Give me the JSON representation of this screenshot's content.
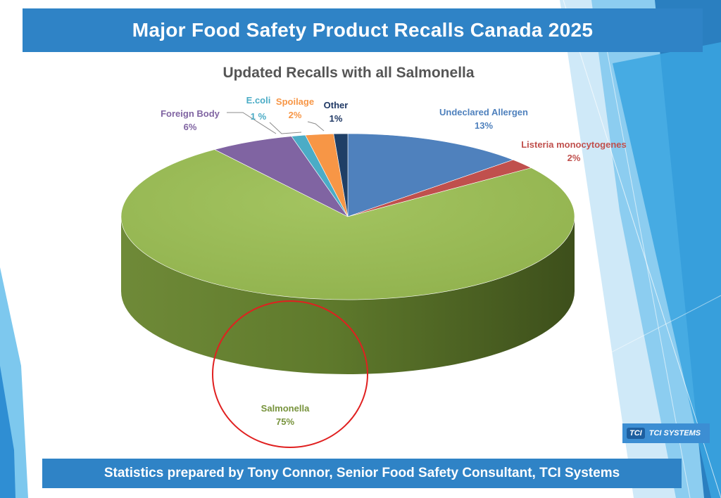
{
  "header": {
    "title": "Major Food Safety Product Recalls Canada 2025"
  },
  "footer": {
    "text": "Statistics prepared by Tony Connor, Senior Food Safety Consultant, TCI Systems"
  },
  "logo": {
    "mark": "TCI",
    "text": "TCI SYSTEMS"
  },
  "chart_data": {
    "type": "pie",
    "title": "Updated Recalls with all Salmonella",
    "slices": [
      {
        "name": "Undeclared Allergen",
        "value": 13,
        "label": "13%",
        "color": "#4f81bd",
        "label_color": "#4f81bd"
      },
      {
        "name": "Listeria monocytogenes",
        "value": 2,
        "label": "2%",
        "color": "#c0504d",
        "label_color": "#c0504d"
      },
      {
        "name": "Salmonella",
        "value": 75,
        "label": "75%",
        "color": "#9bbb59",
        "label_color": "#77933c"
      },
      {
        "name": "Foreign Body",
        "value": 6,
        "label": "6%",
        "color": "#8064a2",
        "label_color": "#8064a2"
      },
      {
        "name": "E.coli",
        "value": 1,
        "label": "1 %",
        "color": "#4bacc6",
        "label_color": "#4bacc6"
      },
      {
        "name": "Spoilage",
        "value": 2,
        "label": "2%",
        "color": "#f79646",
        "label_color": "#f79646"
      },
      {
        "name": "Other",
        "value": 1,
        "label": "1%",
        "color": "#1f3f66",
        "label_color": "#1f3864"
      }
    ],
    "highlight": "Salmonella",
    "highlight_color": "#e02020"
  }
}
